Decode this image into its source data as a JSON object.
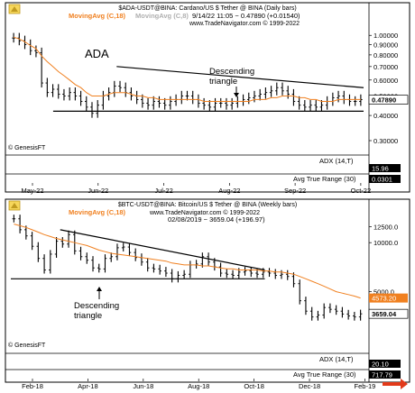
{
  "chart_data": [
    {
      "type": "candlestick",
      "header": {
        "symbol": "$ADA-USDT@BINA: Cardano/US $ Tether @ BINA (Daily bars)",
        "ma1": "MovingAvg (C,18)",
        "ma2": "MovingAvg (C,8)",
        "quote": "9/14/22 11:05 − 0.47890 (+0.01540)",
        "site": "www.TradeNavigator.com © 1999-2022"
      },
      "asset_label": "ADA",
      "annotation": "Descending\ntriangle",
      "watermark": "© GenesisFT",
      "y_axis_scale": "log",
      "y_ticks": [
        "1.00000",
        "0.90000",
        "0.80000",
        "0.70000",
        "0.60000",
        "0.50000",
        "0.40000",
        "0.30000"
      ],
      "last_price": "0.47890",
      "x_labels": [
        "May-22",
        "Jun-22",
        "Jul-22",
        "Aug-22",
        "Sep-22",
        "Oct-22"
      ],
      "adx_label": "ADX (14,T)",
      "adx_value": "15.96",
      "atr_label": "Avg True Range (30)",
      "atr_value": "0.0301",
      "price_series": [
        0.97,
        0.94,
        0.9,
        0.84,
        0.82,
        0.58,
        0.52,
        0.54,
        0.51,
        0.5,
        0.52,
        0.5,
        0.47,
        0.44,
        0.41,
        0.45,
        0.5,
        0.52,
        0.56,
        0.55,
        0.52,
        0.5,
        0.48,
        0.46,
        0.45,
        0.47,
        0.46,
        0.45,
        0.47,
        0.48,
        0.5,
        0.5,
        0.48,
        0.46,
        0.45,
        0.44,
        0.46,
        0.46,
        0.45,
        0.46,
        0.47,
        0.48,
        0.49,
        0.5,
        0.51,
        0.52,
        0.53,
        0.55,
        0.53,
        0.51,
        0.47,
        0.45,
        0.44,
        0.45,
        0.44,
        0.45,
        0.47,
        0.49,
        0.5,
        0.48,
        0.47,
        0.47,
        0.48
      ],
      "ma18_series": [
        0.98,
        0.96,
        0.93,
        0.89,
        0.86,
        0.79,
        0.74,
        0.7,
        0.66,
        0.63,
        0.6,
        0.57,
        0.55,
        0.52,
        0.5,
        0.5,
        0.5,
        0.51,
        0.52,
        0.52,
        0.52,
        0.51,
        0.5,
        0.5,
        0.49,
        0.49,
        0.48,
        0.48,
        0.48,
        0.48,
        0.48,
        0.48,
        0.48,
        0.48,
        0.47,
        0.47,
        0.47,
        0.47,
        0.47,
        0.47,
        0.47,
        0.47,
        0.47,
        0.48,
        0.48,
        0.48,
        0.49,
        0.49,
        0.5,
        0.5,
        0.5,
        0.49,
        0.49,
        0.48,
        0.48,
        0.47,
        0.47,
        0.47,
        0.48,
        0.48,
        0.48,
        0.48,
        0.48
      ],
      "triangle": {
        "top_line": [
          [
            0.3,
            0.7
          ],
          [
            1.0,
            0.55
          ]
        ],
        "bottom_line": [
          [
            0.12,
            0.42
          ],
          [
            1.0,
            0.42
          ]
        ]
      }
    },
    {
      "type": "candlestick",
      "header": {
        "symbol": "$BTC-USDT@BINA: Bitcoin/US $ Tether @ BINA (Weekly bars)",
        "ma1": "MovingAvg (C,18)",
        "site": "www.TradeNavigator.com © 1999-2022",
        "quote": "02/08/2019 − 3659.04 (+196.97)"
      },
      "annotation": "Descending\ntriangle",
      "watermark": "© GenesisFT",
      "y_axis_scale": "log",
      "y_ticks": [
        "12500.0",
        "10000.0",
        "5000.0"
      ],
      "ma_value": "4573.20",
      "last_price": "3659.04",
      "x_labels": [
        "Feb-18",
        "Apr-18",
        "Jun-18",
        "Aug-18",
        "Oct-18",
        "Dec-18",
        "Feb-19"
      ],
      "adx_label": "ADX (14,T)",
      "adx_value": "20.10",
      "atr_label": "Avg True Range (30)",
      "atr_value": "717.79",
      "price_series": [
        14000,
        12000,
        11000,
        9500,
        8000,
        6800,
        8500,
        10200,
        9800,
        11200,
        8900,
        8200,
        7800,
        7000,
        6900,
        8000,
        8200,
        9300,
        9400,
        8700,
        8100,
        7600,
        7000,
        6900,
        6700,
        6500,
        6000,
        6300,
        6400,
        7300,
        7400,
        8200,
        7600,
        7100,
        6500,
        6400,
        6300,
        6600,
        6700,
        6500,
        6400,
        6600,
        6500,
        6300,
        6400,
        6200,
        5600,
        4400,
        3800,
        3500,
        3600,
        4000,
        3900,
        3800,
        3650,
        3550,
        3500,
        3659
      ],
      "ma18_series": [
        13000,
        12700,
        12400,
        12000,
        11600,
        11200,
        10900,
        10600,
        10400,
        10200,
        10000,
        9800,
        9600,
        9300,
        9000,
        8800,
        8600,
        8500,
        8400,
        8300,
        8200,
        8100,
        8000,
        7900,
        7800,
        7700,
        7500,
        7400,
        7300,
        7300,
        7300,
        7200,
        7200,
        7100,
        7000,
        6900,
        6900,
        6800,
        6800,
        6800,
        6800,
        6700,
        6700,
        6600,
        6600,
        6500,
        6400,
        6200,
        6000,
        5800,
        5600,
        5400,
        5200,
        5000,
        4900,
        4800,
        4700,
        4573
      ],
      "triangle": {
        "top_line": [
          [
            0.14,
            12000
          ],
          [
            0.72,
            6800
          ]
        ],
        "bottom_line": [
          [
            0.0,
            6000
          ],
          [
            0.72,
            6000
          ]
        ]
      }
    }
  ],
  "colors": {
    "panel_border": "#000000",
    "ma18": "#f08020",
    "ma8": "#b0b0b0",
    "axis_label_bg": "#ffffff",
    "last_price_bg": "#000000",
    "ma_value_bg": "#f08020",
    "indicator_box": "#000000",
    "red_arrow": "#e23a1a"
  }
}
